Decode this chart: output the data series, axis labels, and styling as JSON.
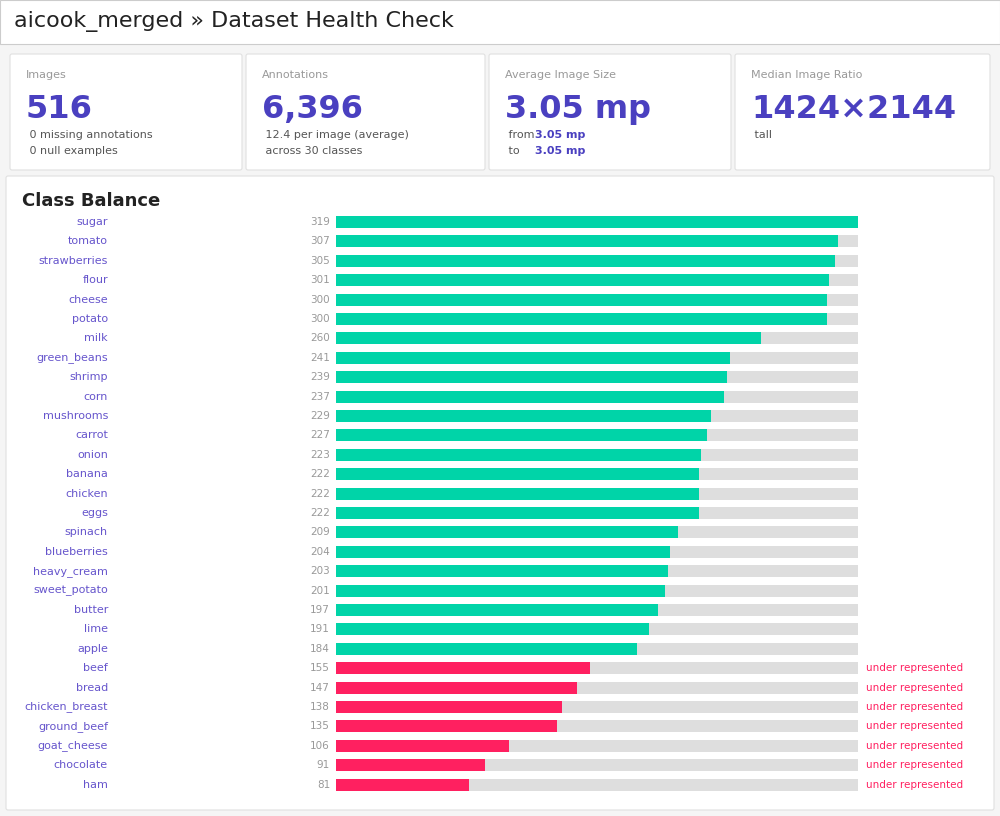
{
  "title_prefix": "aicook_merged ",
  "title_arrow": "»",
  "title_suffix": " Dataset Health Check",
  "bg_color": "#f5f5f5",
  "card_bg": "#ffffff",
  "card_border": "#e0e0e0",
  "stats": [
    {
      "label": "Images",
      "value": "516",
      "sub": [
        " 0 missing annotations",
        " 0 null examples"
      ]
    },
    {
      "label": "Annotations",
      "value": "6,396",
      "sub": [
        " 12.4 per image (average)",
        " across 30 classes"
      ]
    },
    {
      "label": "Average Image Size",
      "value": "3.05 mp",
      "sub_plain": [
        " from ",
        " to "
      ],
      "sub_colored": [
        "3.05 mp",
        "3.05 mp"
      ]
    },
    {
      "label": "Median Image Ratio",
      "value": "1424×2144",
      "sub": [
        " tall"
      ]
    }
  ],
  "section_title": "Class Balance",
  "categories": [
    "sugar",
    "tomato",
    "strawberries",
    "flour",
    "cheese",
    "potato",
    "milk",
    "green_beans",
    "shrimp",
    "corn",
    "mushrooms",
    "carrot",
    "onion",
    "banana",
    "chicken",
    "eggs",
    "spinach",
    "blueberries",
    "heavy_cream",
    "sweet_potato",
    "butter",
    "lime",
    "apple",
    "beef",
    "bread",
    "chicken_breast",
    "ground_beef",
    "goat_cheese",
    "chocolate",
    "ham"
  ],
  "values": [
    319,
    307,
    305,
    301,
    300,
    300,
    260,
    241,
    239,
    237,
    229,
    227,
    223,
    222,
    222,
    222,
    209,
    204,
    203,
    201,
    197,
    191,
    184,
    155,
    147,
    138,
    135,
    106,
    91,
    81
  ],
  "max_val": 319,
  "under_represented": [
    "beef",
    "bread",
    "chicken_breast",
    "ground_beef",
    "goat_cheese",
    "chocolate",
    "ham"
  ],
  "normal_bar_color": "#00d4a8",
  "under_bar_color": "#ff2060",
  "bg_bar_color": "#dedede",
  "label_color": "#6655cc",
  "value_color": "#999999",
  "under_text_color": "#ff2060",
  "title_color": "#222222",
  "stat_label_color": "#999999",
  "stat_value_color": "#4a40c0",
  "stat_sub_color": "#555555",
  "stat_sub_highlight": "#4a40c0",
  "section_title_color": "#222222"
}
